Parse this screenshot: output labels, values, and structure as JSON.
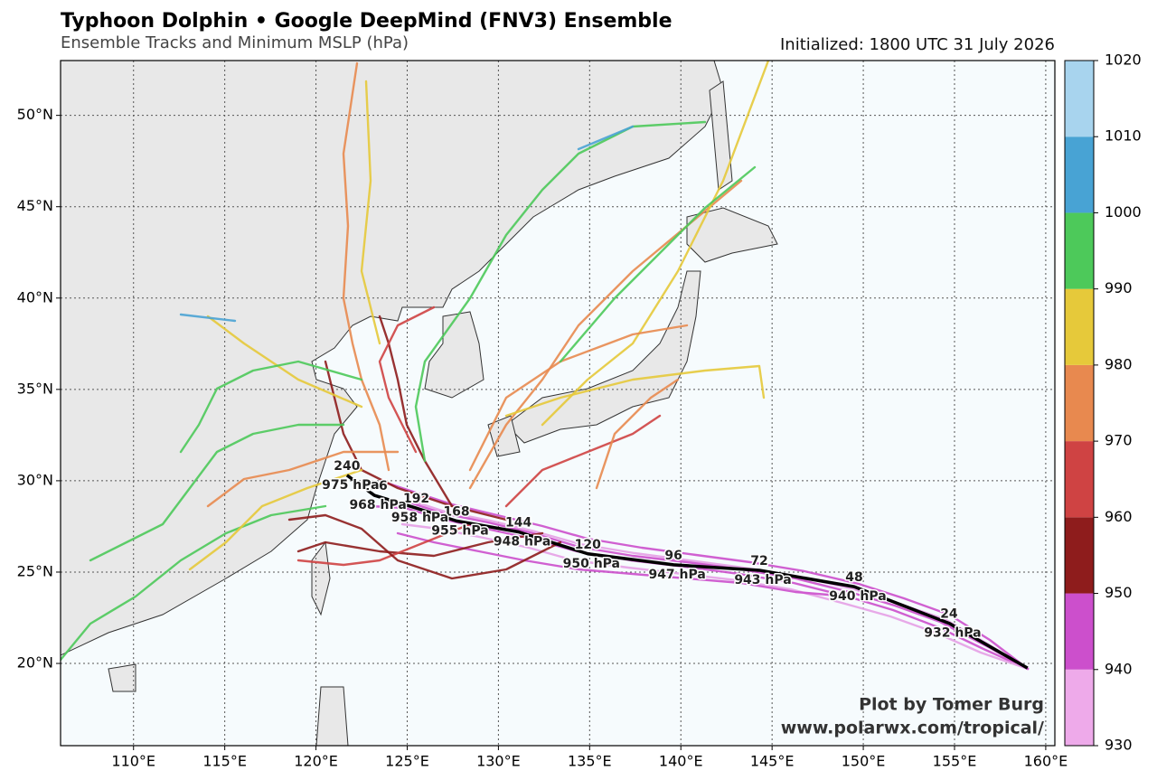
{
  "title": "Typhoon Dolphin • Google DeepMind (FNV3) Ensemble",
  "subtitle": "Ensemble Tracks and Minimum MSLP (hPa)",
  "initialized": "Initialized: 1800 UTC 31 July 2026",
  "credit": [
    "Plot by Tomer Burg",
    "www.polarwx.com/tropical/"
  ],
  "map": {
    "lonlim": [
      106,
      160.5
    ],
    "latlim": [
      15.5,
      53
    ],
    "lonticks": [
      {
        "value": 110,
        "label": "110°E"
      },
      {
        "value": 115,
        "label": "115°E"
      },
      {
        "value": 120,
        "label": "120°E"
      },
      {
        "value": 125,
        "label": "125°E"
      },
      {
        "value": 130,
        "label": "130°E"
      },
      {
        "value": 135,
        "label": "135°E"
      },
      {
        "value": 140,
        "label": "140°E"
      },
      {
        "value": 145,
        "label": "145°E"
      },
      {
        "value": 150,
        "label": "150°E"
      },
      {
        "value": 155,
        "label": "155°E"
      },
      {
        "value": 160,
        "label": "160°E"
      }
    ],
    "latticks": [
      {
        "value": 20,
        "label": "20°N"
      },
      {
        "value": 25,
        "label": "25°N"
      },
      {
        "value": 30,
        "label": "30°N"
      },
      {
        "value": 35,
        "label": "35°N"
      },
      {
        "value": 40,
        "label": "40°N"
      },
      {
        "value": 45,
        "label": "45°N"
      },
      {
        "value": 50,
        "label": "50°N"
      }
    ]
  },
  "colorbar": {
    "levels": [
      930,
      940,
      950,
      960,
      970,
      980,
      990,
      1000,
      1010,
      1020
    ],
    "colors": [
      "#eeaaea",
      "#cc4fcc",
      "#8e1c1c",
      "#cf4343",
      "#e8894f",
      "#e6c93a",
      "#4dc95a",
      "#48a3d4",
      "#a8d4ee"
    ]
  },
  "mean_track": {
    "color": "#000000",
    "lon": [
      159.0,
      154.7,
      149.5,
      144.3,
      139.6,
      134.9,
      131.1,
      127.7,
      125.5,
      123.2,
      121.7
    ],
    "lat": [
      19.75,
      22.2,
      24.2,
      25.1,
      25.4,
      26.0,
      27.2,
      27.8,
      28.5,
      29.2,
      30.3
    ],
    "hours": [
      null,
      24,
      48,
      72,
      96,
      120,
      144,
      168,
      192,
      216,
      240
    ],
    "pressures": [
      null,
      "932 hPa",
      "940 hPa",
      "943 hPa",
      "947 hPa",
      "950 hPa",
      "948 hPa",
      "955 hPa",
      "958 hPa",
      "968 hPa",
      "975 hPa"
    ]
  }
}
